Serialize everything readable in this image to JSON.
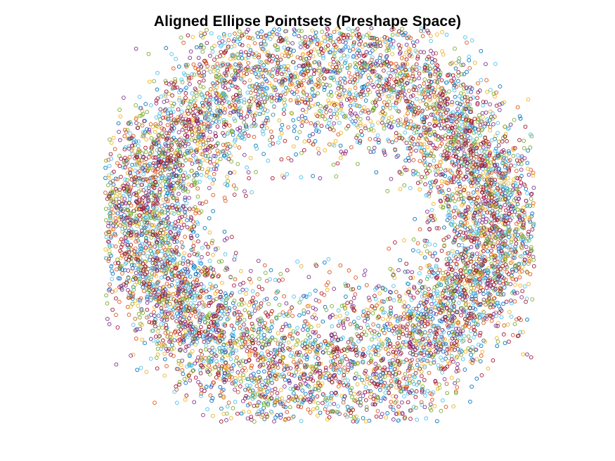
{
  "chart_data": {
    "type": "scatter",
    "title": "Aligned Ellipse Pointsets (Preshape Space)",
    "xlabel": "",
    "ylabel": "",
    "axes_visible": false,
    "grid": false,
    "legend": "none",
    "marker": "open-circle",
    "xlim": [
      -1.05,
      1.05
    ],
    "ylim": [
      -1.0,
      1.0
    ],
    "shape": {
      "form": "elliptical ring",
      "center": [
        0.0,
        0.0
      ],
      "semi_axis_x": 0.84,
      "semi_axis_y": 0.73,
      "inner_hole_semi_axis_x": 0.45,
      "inner_hole_semi_axis_y": 0.17,
      "outer_semi_axis_x": 1.01,
      "outer_semi_axis_y": 0.95
    },
    "series_colors": [
      "#0072BD",
      "#D95319",
      "#EDB120",
      "#7E2F8E",
      "#77AC30",
      "#4DBEEE",
      "#A2142F"
    ],
    "points_per_series": 1150,
    "series_count": 7
  }
}
